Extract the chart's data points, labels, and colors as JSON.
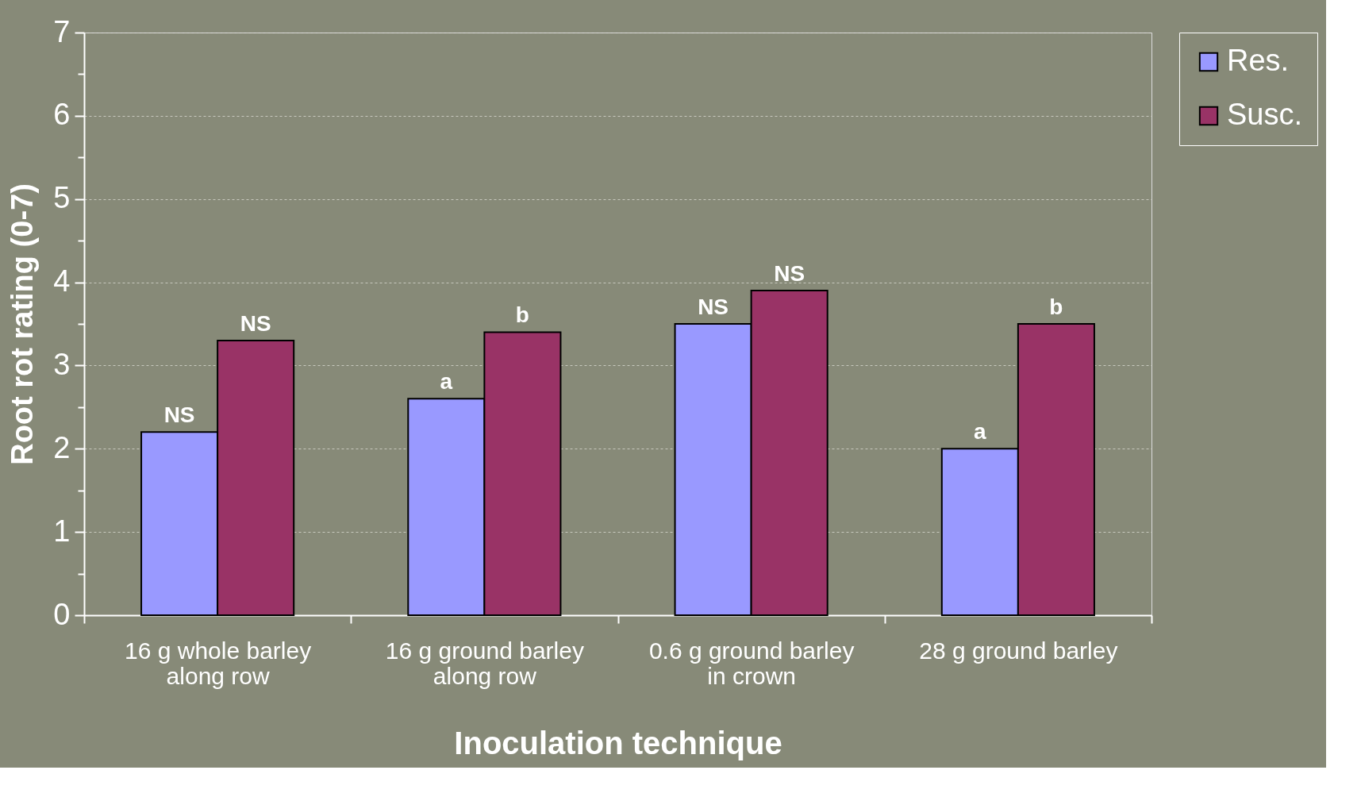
{
  "chart_data": {
    "type": "bar",
    "xlabel": "Inoculation technique",
    "ylabel": "Root rot rating (0-7)",
    "categories": [
      "16 g whole barley\nalong row",
      "16 g ground barley\nalong row",
      "0.6 g ground barley\nin crown",
      "28 g ground barley"
    ],
    "series": [
      {
        "name": "Res.",
        "color": "#9999ff",
        "values": [
          2.2,
          2.6,
          3.5,
          2.0
        ],
        "value_labels": [
          "NS",
          "a",
          "NS",
          "a"
        ]
      },
      {
        "name": "Susc.",
        "color": "#993366",
        "values": [
          3.3,
          3.4,
          3.9,
          3.5
        ],
        "value_labels": [
          "NS",
          "b",
          "NS",
          "b"
        ]
      }
    ],
    "ylim": [
      0,
      7
    ],
    "yticks": [
      0,
      {
        "value": 0.5,
        "label": null
      },
      1,
      {
        "value": 1.5,
        "label": null
      },
      2,
      {
        "value": 2.5,
        "label": null
      },
      3,
      {
        "value": 3.5,
        "label": null
      },
      4,
      {
        "value": 4.5,
        "label": null
      },
      5,
      {
        "value": 5.5,
        "label": null
      },
      6,
      {
        "value": 6.5,
        "label": null
      },
      7
    ],
    "grid": "y",
    "legend": "right"
  }
}
